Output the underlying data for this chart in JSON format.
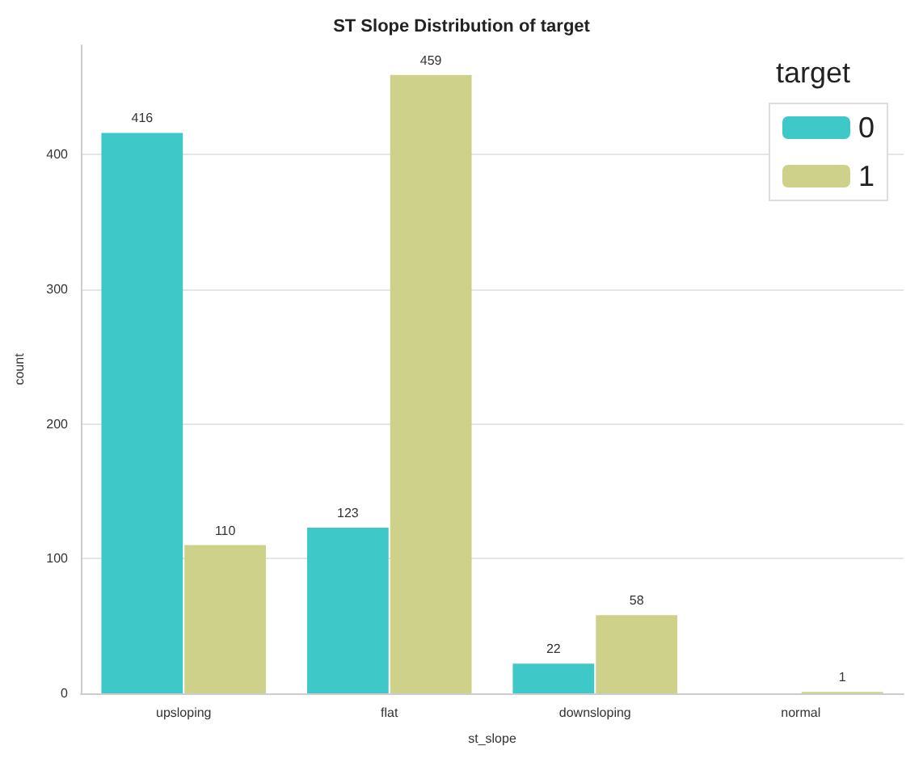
{
  "chart_data": {
    "type": "bar",
    "title": "ST Slope Distribution of target",
    "xlabel": "st_slope",
    "ylabel": "count",
    "legend_title": "target",
    "categories": [
      "upsloping",
      "flat",
      "downsloping",
      "normal"
    ],
    "series": [
      {
        "name": "0",
        "color": "#3ec8c8",
        "values": [
          416,
          123,
          22,
          null
        ]
      },
      {
        "name": "1",
        "color": "#cdd18a",
        "values": [
          110,
          459,
          58,
          1
        ]
      }
    ],
    "ylim": [
      0,
      481
    ],
    "yticks": [
      0,
      100,
      200,
      300,
      400
    ],
    "grid": "y",
    "legend": "top right",
    "data_labels": true
  }
}
